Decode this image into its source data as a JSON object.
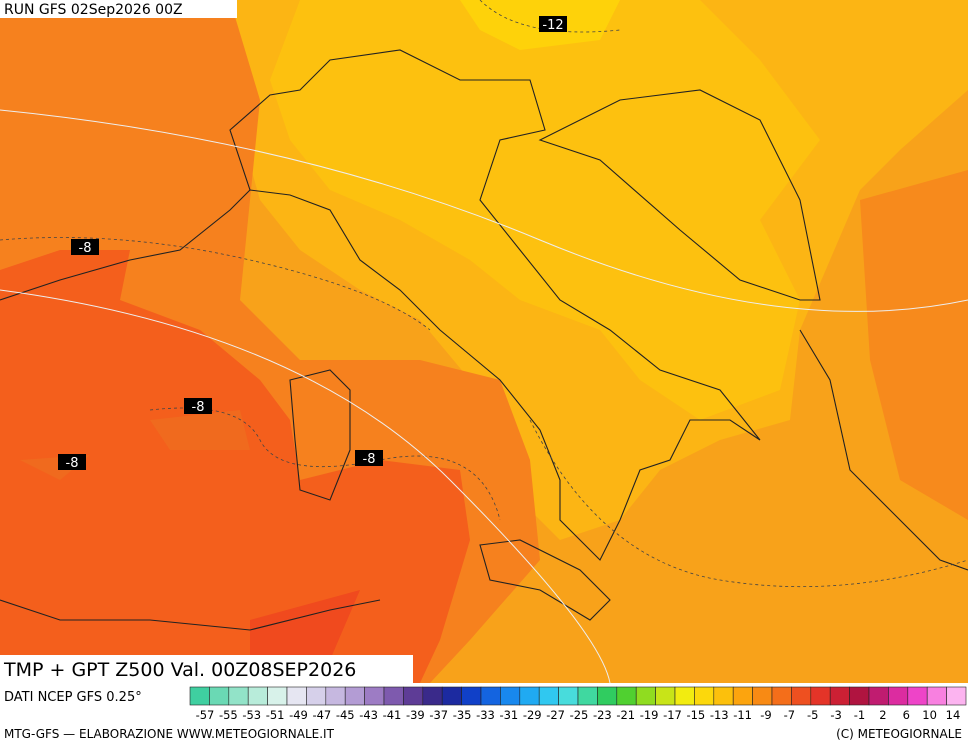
{
  "header": {
    "run": "RUN GFS 02Sep2026 00Z"
  },
  "map": {
    "contour_labels": [
      "-12",
      "-8",
      "-8",
      "-8",
      "-8"
    ]
  },
  "footer": {
    "title": "TMP + GPT Z500 Val. 00Z08SEP2026",
    "source": "DATI NCEP GFS 0.25°",
    "colorbar_labels": [
      "-57",
      "-55",
      "-53",
      "-51",
      "-49",
      "-47",
      "-45",
      "-43",
      "-41",
      "-39",
      "-37",
      "-35",
      "-33",
      "-31",
      "-29",
      "-27",
      "-25",
      "-23",
      "-21",
      "-19",
      "-17",
      "-15",
      "-13",
      "-11",
      "-9",
      "-7",
      "-5",
      "-3",
      "-1",
      "2",
      "6",
      "10",
      "14"
    ],
    "credit": "MTG-GFS — ELABORAZIONE WWW.METEOGIORNALE.IT",
    "copyright": "(C) METEOGIORNALE"
  }
}
